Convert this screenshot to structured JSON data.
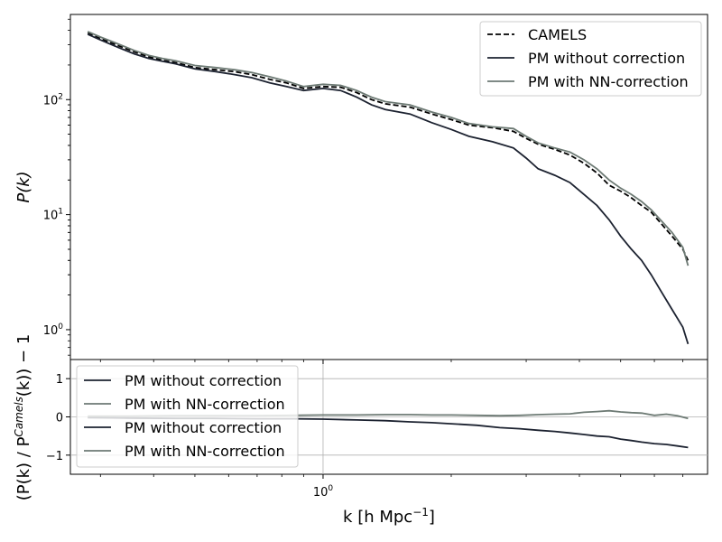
{
  "chart_data": [
    {
      "type": "line",
      "panel": "top",
      "xscale": "log",
      "yscale": "log",
      "xlim": [
        0.255,
        8.0
      ],
      "ylim": [
        0.55,
        550
      ],
      "ylabel": "P(k)",
      "yticks": [
        {
          "value": 1,
          "base": "10",
          "exp": "0"
        },
        {
          "value": 10,
          "base": "10",
          "exp": "1"
        },
        {
          "value": 100,
          "base": "10",
          "exp": "2"
        }
      ],
      "grid": false,
      "legend": "top-right",
      "x": [
        0.28,
        0.3,
        0.33,
        0.36,
        0.39,
        0.42,
        0.45,
        0.5,
        0.56,
        0.62,
        0.68,
        0.75,
        0.82,
        0.9,
        1.0,
        1.1,
        1.2,
        1.3,
        1.4,
        1.6,
        1.8,
        2.0,
        2.2,
        2.5,
        2.8,
        3.0,
        3.2,
        3.5,
        3.8,
        4.1,
        4.4,
        4.7,
        5.0,
        5.3,
        5.6,
        5.9,
        6.2,
        6.6,
        7.0,
        7.2
      ],
      "series": [
        {
          "name": "CAMELS",
          "color": "#000000",
          "dash": "dashed",
          "values": [
            380,
            340,
            295,
            260,
            235,
            220,
            210,
            190,
            182,
            175,
            165,
            150,
            140,
            125,
            130,
            128,
            115,
            100,
            92,
            86,
            75,
            67,
            60,
            57,
            53,
            46,
            41,
            37,
            33,
            28,
            23,
            18,
            16,
            14,
            12,
            10.5,
            8.5,
            6.5,
            5.0,
            4.0
          ]
        },
        {
          "name": "PM without correction",
          "color": "#1c2230",
          "dash": "solid",
          "values": [
            370,
            330,
            285,
            250,
            228,
            215,
            205,
            185,
            175,
            165,
            155,
            140,
            130,
            120,
            125,
            120,
            105,
            90,
            82,
            75,
            63,
            55,
            48,
            43,
            38,
            31,
            25,
            22,
            19,
            15,
            12,
            9,
            6.5,
            5.0,
            4.0,
            3.0,
            2.2,
            1.5,
            1.05,
            0.75
          ]
        },
        {
          "name": "PM with NN-correction",
          "color": "#6d7a74",
          "dash": "solid",
          "values": [
            390,
            350,
            305,
            268,
            242,
            228,
            218,
            198,
            190,
            182,
            172,
            158,
            145,
            130,
            136,
            133,
            120,
            105,
            96,
            90,
            78,
            70,
            62,
            58,
            56,
            48,
            42,
            38,
            35,
            30,
            25,
            20,
            17,
            15,
            13,
            11,
            9,
            7,
            5.2,
            3.6
          ]
        }
      ]
    },
    {
      "type": "line",
      "panel": "bottom",
      "xscale": "log",
      "yscale": "linear",
      "xlim": [
        0.255,
        8.0
      ],
      "ylim": [
        -1.5,
        1.5
      ],
      "xlabel": "k [h Mpc",
      "xlabel_exp": "−1",
      "xlabel_close": "]",
      "ylabel": "(P(k) / P",
      "ylabel_sup": "Camels",
      "ylabel_tail": "(k)) − 1",
      "yticks": [
        1,
        0,
        -1
      ],
      "xticks": [
        {
          "value": 1,
          "base": "10",
          "exp": "0"
        }
      ],
      "grid": true,
      "legend": "top-left",
      "x": [
        0.28,
        0.35,
        0.45,
        0.55,
        0.7,
        0.85,
        1.0,
        1.2,
        1.4,
        1.6,
        1.8,
        2.0,
        2.3,
        2.6,
        2.9,
        3.2,
        3.5,
        3.8,
        4.1,
        4.4,
        4.7,
        5.0,
        5.3,
        5.6,
        6.0,
        6.4,
        6.8,
        7.2
      ],
      "series": [
        {
          "name": "PM without correction",
          "color": "#1c2230",
          "dash": "solid",
          "values": [
            -0.02,
            -0.03,
            -0.04,
            -0.04,
            -0.05,
            -0.05,
            -0.06,
            -0.08,
            -0.1,
            -0.13,
            -0.15,
            -0.18,
            -0.22,
            -0.28,
            -0.31,
            -0.35,
            -0.38,
            -0.42,
            -0.46,
            -0.5,
            -0.52,
            -0.58,
            -0.62,
            -0.66,
            -0.7,
            -0.72,
            -0.76,
            -0.8
          ]
        },
        {
          "name": "PM with NN-correction",
          "color": "#6d7a74",
          "dash": "solid",
          "values": [
            0.02,
            0.02,
            0.03,
            0.03,
            0.03,
            0.04,
            0.05,
            0.05,
            0.06,
            0.06,
            0.05,
            0.05,
            0.04,
            0.03,
            0.04,
            0.06,
            0.07,
            0.08,
            0.12,
            0.14,
            0.16,
            0.13,
            0.11,
            0.1,
            0.04,
            0.07,
            0.03,
            -0.04
          ]
        }
      ],
      "legend_entries": [
        {
          "name": "PM without correction",
          "color": "#1c2230"
        },
        {
          "name": "PM with NN-correction",
          "color": "#6d7a74"
        },
        {
          "name": "PM without correction",
          "color": "#1c2230"
        },
        {
          "name": "PM with NN-correction",
          "color": "#6d7a74"
        }
      ]
    }
  ]
}
